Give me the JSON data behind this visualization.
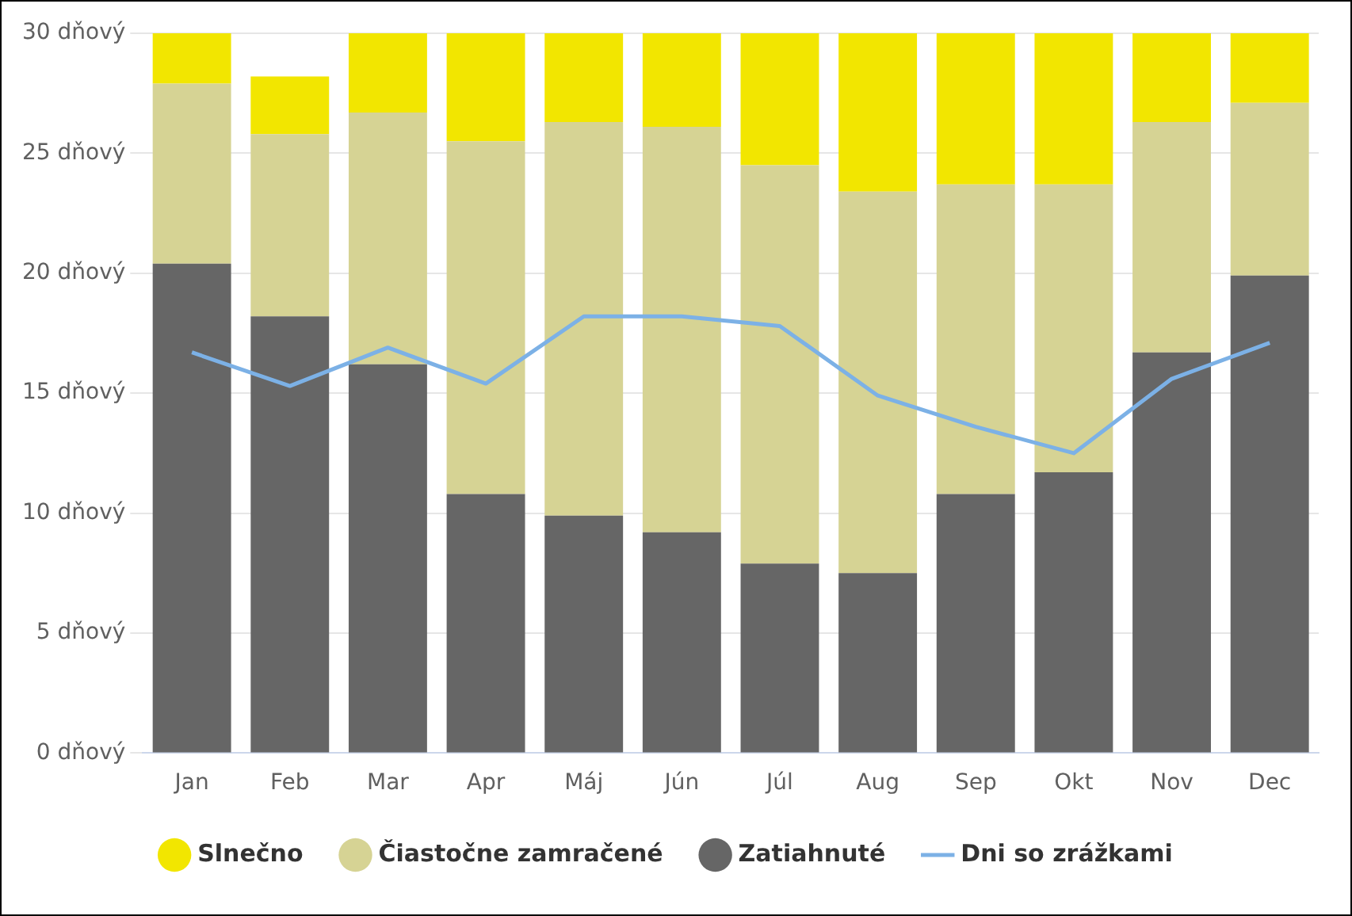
{
  "chart_data": {
    "type": "bar",
    "stacked": true,
    "categories": [
      "Jan",
      "Feb",
      "Mar",
      "Apr",
      "Máj",
      "Jún",
      "Júl",
      "Aug",
      "Sep",
      "Okt",
      "Nov",
      "Dec"
    ],
    "series": [
      {
        "name": "Zatiahnuté",
        "color": "#666666",
        "values": [
          20.4,
          18.2,
          16.2,
          10.8,
          9.9,
          9.2,
          7.9,
          7.5,
          10.8,
          11.7,
          16.7,
          19.9
        ]
      },
      {
        "name": "Čiastočne zamračené",
        "color": "#d6d394",
        "values": [
          7.5,
          7.6,
          10.5,
          14.7,
          16.4,
          16.9,
          16.6,
          15.9,
          12.9,
          12.0,
          9.6,
          7.2
        ]
      },
      {
        "name": "Slnečno",
        "color": "#f2e600",
        "values": [
          2.1,
          2.4,
          3.3,
          4.5,
          3.7,
          3.9,
          5.5,
          6.6,
          6.3,
          6.3,
          3.7,
          2.9
        ]
      },
      {
        "name": "Dni so zrážkami",
        "type": "line",
        "color": "#7cb1e6",
        "marker": "none",
        "values": [
          16.7,
          15.3,
          16.9,
          15.4,
          18.2,
          18.2,
          17.8,
          14.9,
          13.6,
          12.5,
          15.6,
          17.1
        ]
      }
    ],
    "ylim": [
      0,
      30
    ],
    "yticks": [
      {
        "value": 0,
        "label": "0 dňový"
      },
      {
        "value": 5,
        "label": "5 dňový"
      },
      {
        "value": 10,
        "label": "10 dňový"
      },
      {
        "value": 15,
        "label": "15 dňový"
      },
      {
        "value": 20,
        "label": "20 dňový"
      },
      {
        "value": 25,
        "label": "25 dňový"
      },
      {
        "value": 30,
        "label": "30 dňový"
      }
    ],
    "grid": "y",
    "legend": "bottom"
  }
}
